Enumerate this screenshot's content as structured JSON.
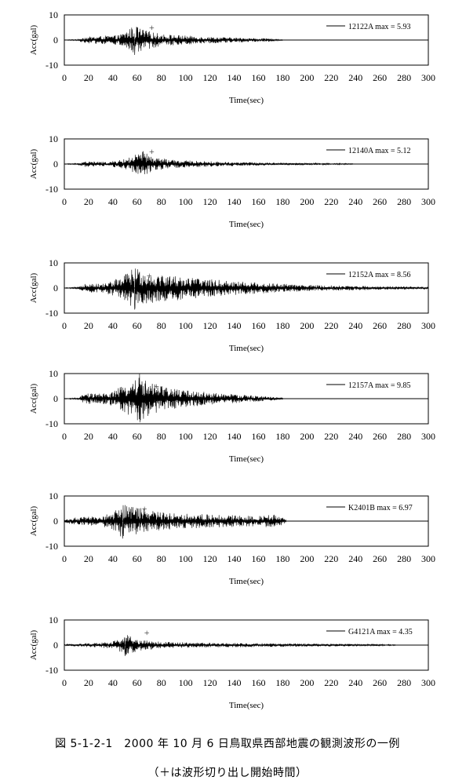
{
  "chart_data": [
    {
      "type": "line",
      "xlabel": "Time(sec)",
      "ylabel": "Acc(gal)",
      "xlim": [
        0,
        300
      ],
      "ylim": [
        -10,
        10
      ],
      "xticks": [
        0,
        20,
        40,
        60,
        80,
        100,
        120,
        140,
        160,
        180,
        200,
        220,
        240,
        260,
        280,
        300
      ],
      "yticks": [
        10,
        0,
        -10
      ],
      "legend": "12122A  max = 5.93",
      "legend_position": "top-right",
      "series": [
        {
          "name": "12122A",
          "max": 5.93,
          "start": 0,
          "end": 180,
          "peak_time": 58,
          "envelope": [
            [
              0,
              0.1
            ],
            [
              12,
              0.3
            ],
            [
              15,
              1.2
            ],
            [
              30,
              1.6
            ],
            [
              45,
              2.0
            ],
            [
              52,
              4.0
            ],
            [
              58,
              5.93
            ],
            [
              66,
              4.0
            ],
            [
              80,
              2.4
            ],
            [
              110,
              1.5
            ],
            [
              140,
              1.0
            ],
            [
              170,
              0.6
            ],
            [
              180,
              0.2
            ]
          ]
        }
      ],
      "marker": {
        "label": "+",
        "x": 72,
        "y": 5
      }
    },
    {
      "type": "line",
      "xlabel": "Time(sec)",
      "ylabel": "Acc(gal)",
      "xlim": [
        0,
        300
      ],
      "ylim": [
        -10,
        10
      ],
      "xticks": [
        0,
        20,
        40,
        60,
        80,
        100,
        120,
        140,
        160,
        180,
        200,
        220,
        240,
        260,
        280,
        300
      ],
      "yticks": [
        10,
        0,
        -10
      ],
      "legend": "12140A  max = 5.12",
      "legend_position": "top-right",
      "series": [
        {
          "name": "12140A",
          "max": 5.12,
          "start": 0,
          "end": 238,
          "peak_time": 65,
          "envelope": [
            [
              0,
              0.1
            ],
            [
              12,
              0.3
            ],
            [
              16,
              1.2
            ],
            [
              35,
              0.8
            ],
            [
              50,
              2.0
            ],
            [
              60,
              4.0
            ],
            [
              65,
              5.12
            ],
            [
              72,
              3.0
            ],
            [
              90,
              1.6
            ],
            [
              130,
              0.9
            ],
            [
              180,
              0.5
            ],
            [
              238,
              0.2
            ]
          ]
        }
      ],
      "marker": {
        "label": "+",
        "x": 72,
        "y": 5
      }
    },
    {
      "type": "line",
      "xlabel": "Time(sec)",
      "ylabel": "Acc(gal)",
      "xlim": [
        0,
        300
      ],
      "ylim": [
        -10,
        10
      ],
      "xticks": [
        0,
        20,
        40,
        60,
        80,
        100,
        120,
        140,
        160,
        180,
        200,
        220,
        240,
        260,
        280,
        300
      ],
      "yticks": [
        10,
        0,
        -10
      ],
      "legend": "12152A  max = 8.56",
      "legend_position": "top-right",
      "series": [
        {
          "name": "12152A",
          "max": 8.56,
          "start": 0,
          "end": 300,
          "peak_time": 58,
          "envelope": [
            [
              0,
              0.1
            ],
            [
              12,
              0.4
            ],
            [
              18,
              2.5
            ],
            [
              30,
              1.5
            ],
            [
              45,
              4.0
            ],
            [
              58,
              8.56
            ],
            [
              70,
              6.0
            ],
            [
              90,
              5.0
            ],
            [
              120,
              3.5
            ],
            [
              160,
              2.2
            ],
            [
              200,
              1.2
            ],
            [
              250,
              0.8
            ],
            [
              300,
              0.5
            ]
          ]
        }
      ],
      "marker": {
        "label": "+",
        "x": 70,
        "y": 5
      }
    },
    {
      "type": "line",
      "xlabel": "Time(sec)",
      "ylabel": "Acc(gal)",
      "xlim": [
        0,
        300
      ],
      "ylim": [
        -10,
        10
      ],
      "xticks": [
        0,
        20,
        40,
        60,
        80,
        100,
        120,
        140,
        160,
        180,
        200,
        220,
        240,
        260,
        280,
        300
      ],
      "yticks": [
        10,
        0,
        -10
      ],
      "legend": "12157A  max = 9.85",
      "legend_position": "top-right",
      "series": [
        {
          "name": "12157A",
          "max": 9.85,
          "start": 0,
          "end": 180,
          "peak_time": 62,
          "envelope": [
            [
              0,
              0.1
            ],
            [
              12,
              0.4
            ],
            [
              16,
              2.0
            ],
            [
              35,
              2.2
            ],
            [
              48,
              5.0
            ],
            [
              62,
              9.85
            ],
            [
              72,
              6.0
            ],
            [
              90,
              4.0
            ],
            [
              120,
              2.5
            ],
            [
              150,
              1.5
            ],
            [
              180,
              0.4
            ]
          ]
        }
      ],
      "marker": {
        "label": "+",
        "x": 76,
        "y": 5
      }
    },
    {
      "type": "line",
      "xlabel": "Time(sec)",
      "ylabel": "Acc(gal)",
      "xlim": [
        0,
        300
      ],
      "ylim": [
        -10,
        10
      ],
      "xticks": [
        0,
        20,
        40,
        60,
        80,
        100,
        120,
        140,
        160,
        180,
        200,
        220,
        240,
        260,
        280,
        300
      ],
      "yticks": [
        10,
        0,
        -10
      ],
      "legend": "K2401B  max = 6.97",
      "legend_position": "top-right",
      "series": [
        {
          "name": "K2401B",
          "max": 6.97,
          "start": 0,
          "end": 183,
          "peak_time": 48,
          "envelope": [
            [
              0,
              0.8
            ],
            [
              10,
              1.5
            ],
            [
              30,
              2.0
            ],
            [
              40,
              3.5
            ],
            [
              48,
              6.97
            ],
            [
              60,
              5.5
            ],
            [
              75,
              4.0
            ],
            [
              100,
              3.0
            ],
            [
              130,
              2.5
            ],
            [
              160,
              2.0
            ],
            [
              175,
              3.0
            ],
            [
              183,
              0.5
            ]
          ]
        }
      ],
      "marker": {
        "label": "+",
        "x": 66,
        "y": 5
      }
    },
    {
      "type": "line",
      "xlabel": "Time(sec)",
      "ylabel": "Acc(gal)",
      "xlim": [
        0,
        300
      ],
      "ylim": [
        -10,
        10
      ],
      "xticks": [
        0,
        20,
        40,
        60,
        80,
        100,
        120,
        140,
        160,
        180,
        200,
        220,
        240,
        260,
        280,
        300
      ],
      "yticks": [
        10,
        0,
        -10
      ],
      "legend": "G4121A  max = 4.35",
      "legend_position": "top-right",
      "series": [
        {
          "name": "G4121A",
          "max": 4.35,
          "start": 0,
          "end": 273,
          "peak_time": 50,
          "envelope": [
            [
              0,
              0.2
            ],
            [
              8,
              0.6
            ],
            [
              25,
              0.9
            ],
            [
              40,
              1.5
            ],
            [
              50,
              4.35
            ],
            [
              60,
              2.5
            ],
            [
              80,
              1.3
            ],
            [
              120,
              0.9
            ],
            [
              180,
              0.7
            ],
            [
              230,
              0.5
            ],
            [
              273,
              0.2
            ]
          ]
        }
      ],
      "marker": {
        "label": "+",
        "x": 68,
        "y": 5
      }
    }
  ],
  "caption": {
    "title": "図 5-1-2-1　2000 年 10 月 6 日鳥取県西部地震の観測波形の一例",
    "subtitle": "（＋は波形切り出し開始時間）"
  }
}
